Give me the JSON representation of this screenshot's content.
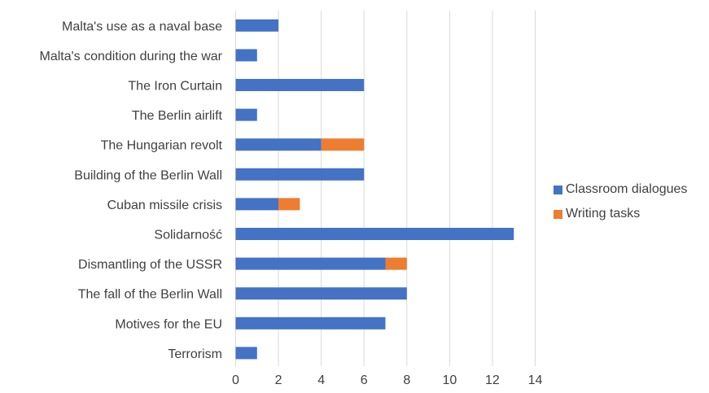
{
  "chart_data": {
    "type": "bar",
    "orientation": "horizontal",
    "stacked": true,
    "title": "",
    "xlabel": "",
    "ylabel": "",
    "categories": [
      "Malta's use as a naval base",
      "Malta's condition during the war",
      "The Iron Curtain",
      "The Berlin airlift",
      "The Hungarian revolt",
      "Building of the Berlin Wall",
      "Cuban missile crisis",
      "Solidarność",
      "Dismantling of the USSR",
      "The fall of the Berlin Wall",
      "Motives for the EU",
      "Terrorism"
    ],
    "series": [
      {
        "name": "Classroom dialogues",
        "color": "#4472C4",
        "values": [
          2,
          1,
          6,
          1,
          4,
          6,
          2,
          13,
          7,
          8,
          7,
          1
        ]
      },
      {
        "name": "Writing tasks",
        "color": "#ED7D31",
        "values": [
          0,
          0,
          0,
          0,
          2,
          0,
          1,
          0,
          1,
          0,
          0,
          0
        ]
      }
    ],
    "xlim": [
      0,
      14
    ],
    "xticks": [
      0,
      2,
      4,
      6,
      8,
      10,
      12,
      14
    ],
    "xtick_labels": [
      "0",
      "2",
      "4",
      "6",
      "8",
      "10",
      "12",
      "14"
    ],
    "grid": "vertical",
    "legend_position": "right"
  }
}
